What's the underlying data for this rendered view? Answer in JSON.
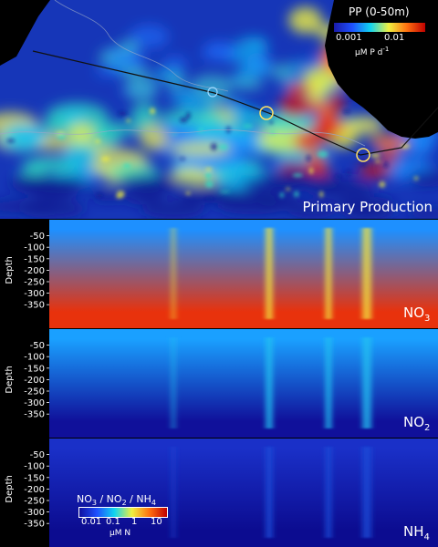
{
  "chart_data": [
    {
      "type": "heatmap",
      "panel": "map",
      "title": "Primary Production",
      "colorbar": {
        "title": "PP  (0-50m)",
        "ticks": [
          "0.001",
          "0.01"
        ],
        "units_main": "μM P d",
        "units_exp": "-1",
        "scale": "log",
        "colors": [
          "#1a1aa8",
          "#1e50ff",
          "#10d4f0",
          "#f0f040",
          "#ff7010",
          "#c00000"
        ]
      }
    },
    {
      "type": "heatmap",
      "panel": "section",
      "label_main": "NO",
      "label_sub": "3",
      "ylabel": "Depth",
      "yticks": [
        "-50",
        "-100",
        "-150",
        "-200",
        "-250",
        "-300",
        "-350"
      ],
      "surface_color": "#1e90ff",
      "deep_color": "#e8320c"
    },
    {
      "type": "heatmap",
      "panel": "section",
      "label_main": "NO",
      "label_sub": "2",
      "ylabel": "Depth",
      "yticks": [
        "-50",
        "-100",
        "-150",
        "-200",
        "-250",
        "-300",
        "-350"
      ],
      "surface_color": "#1aa0ff",
      "deep_color": "#10109a"
    },
    {
      "type": "heatmap",
      "panel": "section",
      "label_main": "NH",
      "label_sub": "4",
      "ylabel": "Depth",
      "yticks": [
        "-50",
        "-100",
        "-150",
        "-200",
        "-250",
        "-300",
        "-350"
      ],
      "surface_color": "#1a30c8",
      "deep_color": "#0c0c90",
      "colorbar": {
        "title_parts": [
          {
            "main": "NO",
            "sub": "3"
          },
          {
            "main": " / NO",
            "sub": "2"
          },
          {
            "main": " / NH",
            "sub": "4"
          }
        ],
        "ticks": [
          "0.01",
          "0.1",
          "1",
          "10"
        ],
        "units": "μM N",
        "scale": "log",
        "colors": [
          "#1010a0",
          "#1e50ff",
          "#10d4f0",
          "#f0f040",
          "#ff7010",
          "#c00000"
        ]
      }
    }
  ]
}
